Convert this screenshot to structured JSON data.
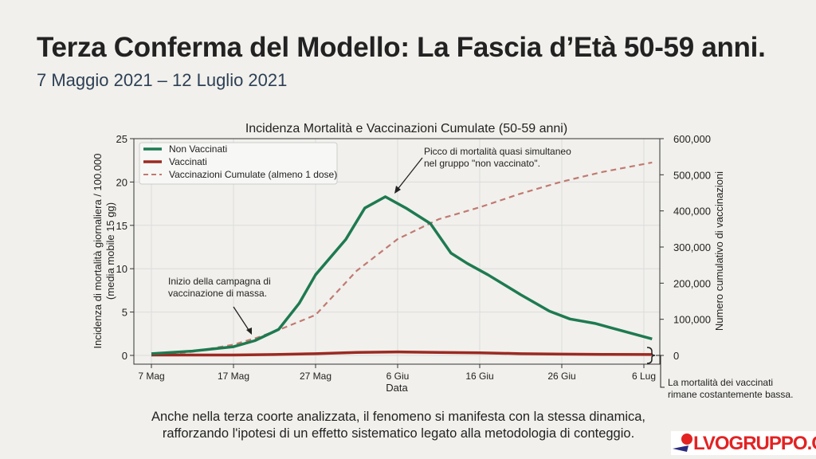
{
  "title": "Terza Conferma del Modello: La Fascia d’Età 50-59 anni.",
  "subtitle": "7 Maggio 2021 – 12 Luglio 2021",
  "caption": [
    "Anche nella terza coorte analizzata, il fenomeno si manifesta con la stessa dinamica,",
    "rafforzando l'ipotesi di un effetto sistematico legato alla metodologia di conteggio."
  ],
  "logo": "LVOGRUPPO.COM",
  "chart_data": {
    "type": "line",
    "title": "Incidenza Mortalità e Vaccinazioni Cumulate (50-59 anni)",
    "xlabel": "Data",
    "ylabel": [
      "Incidenza di mortalità giornaliera / 100.000",
      "(media mobile 15 gg)"
    ],
    "y2label": "Numero cumulativo di vaccinazioni",
    "xlim_days": [
      -2,
      62
    ],
    "ylim": [
      -1,
      25
    ],
    "y2lim": [
      -24000,
      600000
    ],
    "x_ticks": [
      {
        "day": 0,
        "label": "7 Mag"
      },
      {
        "day": 10,
        "label": "17 Mag"
      },
      {
        "day": 20,
        "label": "27 Mag"
      },
      {
        "day": 30,
        "label": "6 Giu"
      },
      {
        "day": 40,
        "label": "16 Giu"
      },
      {
        "day": 50,
        "label": "26 Giu"
      },
      {
        "day": 60,
        "label": "6 Lug"
      }
    ],
    "y_ticks": [
      0,
      5,
      10,
      15,
      20,
      25
    ],
    "y2_ticks": [
      {
        "v": 0,
        "label": "0"
      },
      {
        "v": 100000,
        "label": "100,000"
      },
      {
        "v": 200000,
        "label": "200,000"
      },
      {
        "v": 300000,
        "label": "300,000"
      },
      {
        "v": 400000,
        "label": "400,000"
      },
      {
        "v": 500000,
        "label": "500,000"
      },
      {
        "v": 600000,
        "label": "600,000"
      }
    ],
    "legend": "top-left",
    "series": [
      {
        "name": "Non Vaccinati",
        "color": "#1e7a50",
        "axis": "left",
        "style": "solid",
        "x": [
          0,
          5,
          10,
          12.6,
          15.5,
          18,
          20,
          23.7,
          26,
          28.5,
          31,
          34,
          36.5,
          38.5,
          41,
          45,
          48.5,
          51,
          54,
          61
        ],
        "y": [
          0.2,
          0.5,
          1.0,
          1.7,
          3.0,
          6.0,
          9.3,
          13.4,
          17.0,
          18.3,
          17.0,
          15.2,
          11.8,
          10.6,
          9.3,
          7.0,
          5.1,
          4.2,
          3.7,
          1.9
        ]
      },
      {
        "name": "Vaccinati",
        "color": "#9b2a22",
        "axis": "left",
        "style": "solid",
        "x": [
          0,
          10,
          15,
          20,
          25,
          30,
          35,
          40,
          45,
          50,
          55,
          61
        ],
        "y": [
          0.05,
          0.05,
          0.1,
          0.2,
          0.35,
          0.4,
          0.35,
          0.3,
          0.2,
          0.15,
          0.12,
          0.1
        ]
      },
      {
        "name": "Vaccinazioni Cumulate (almeno 1 dose)",
        "color": "#c07a72",
        "axis": "right",
        "style": "dashed",
        "x": [
          0,
          5,
          10,
          13,
          16,
          20,
          25,
          30,
          35,
          40,
          45,
          50,
          55,
          61
        ],
        "y": [
          0,
          10000,
          30000,
          50000,
          75000,
          112000,
          234000,
          322000,
          377000,
          410000,
          448000,
          481000,
          508000,
          534000
        ]
      }
    ],
    "annotations": [
      {
        "text": [
          "Picco di mortalità quasi simultaneo",
          "nel gruppo \"non vaccinato\"."
        ]
      },
      {
        "text": [
          "Inizio della campagna di",
          "vaccinazione di massa."
        ]
      },
      {
        "text": [
          "La mortalità dei vaccinati",
          "rimane costantemente bassa."
        ]
      }
    ]
  }
}
